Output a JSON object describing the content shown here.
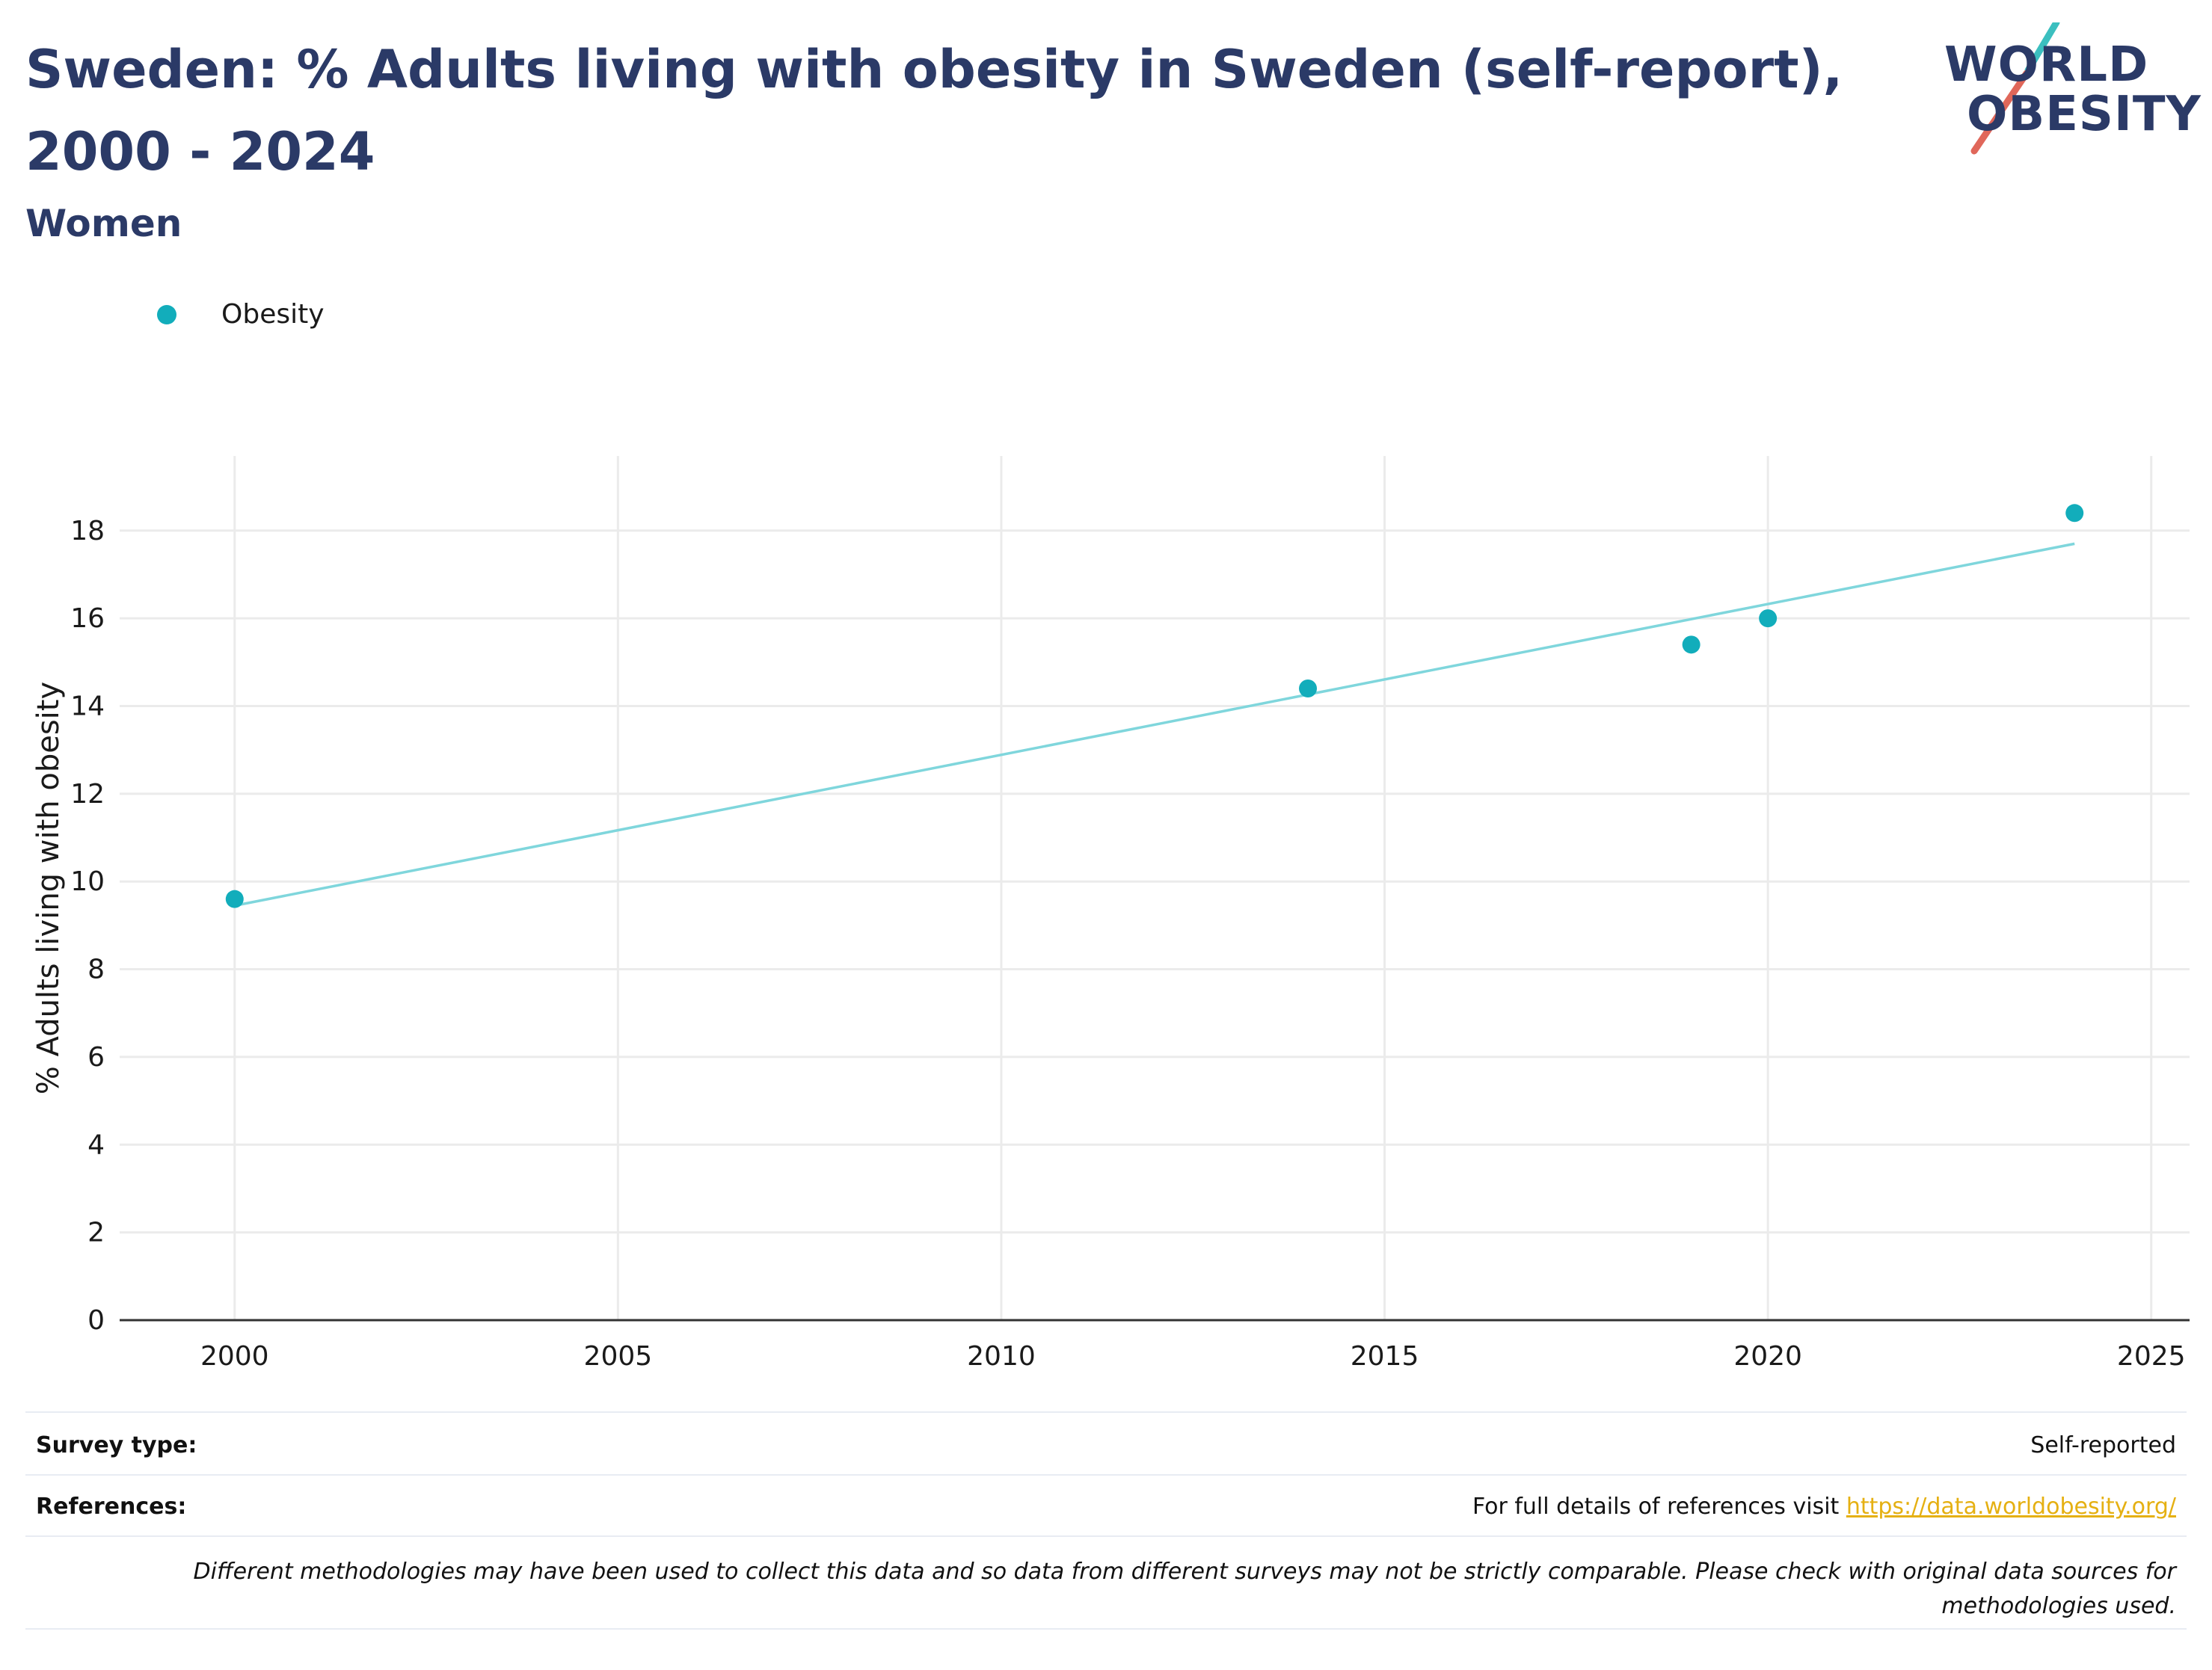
{
  "header": {
    "title": "Sweden: % Adults living with obesity in Sweden (self-report), 2000 - 2024",
    "subtitle": "Women"
  },
  "logo": {
    "line1": "WORLD",
    "line2": "OBESITY",
    "slash_colors": [
      "#3bbfbf",
      "#e0675a"
    ]
  },
  "colors": {
    "title": "#2b3a67",
    "series": "#12adbb",
    "trend": "#7fd6dc",
    "grid": "#ebebeb",
    "link": "#e5b012"
  },
  "chart_data": {
    "type": "scatter",
    "xlabel": "",
    "ylabel": "% Adults living with obesity",
    "xlim": [
      1998.5,
      2025.5
    ],
    "ylim": [
      0,
      19.7
    ],
    "x_ticks": [
      2000,
      2005,
      2010,
      2015,
      2020,
      2025
    ],
    "y_ticks": [
      0,
      2,
      4,
      6,
      8,
      10,
      12,
      14,
      16,
      18
    ],
    "grid": true,
    "legend_position": "top-left",
    "series": [
      {
        "name": "Obesity",
        "x": [
          2000,
          2014,
          2019,
          2020,
          2024
        ],
        "y": [
          9.6,
          14.4,
          15.4,
          16.0,
          18.4
        ]
      }
    ],
    "trendline": {
      "x": [
        2000,
        2024
      ],
      "y": [
        9.45,
        17.7
      ]
    }
  },
  "footer": {
    "survey_type_label": "Survey type:",
    "survey_type_value": "Self-reported",
    "references_label": "References:",
    "references_text": "For full details of references visit ",
    "references_link": "https://data.worldobesity.org/",
    "disclaimer": "Different methodologies may have been used to collect this data and so data from different surveys may not be strictly comparable. Please check with original data sources for methodologies used."
  }
}
